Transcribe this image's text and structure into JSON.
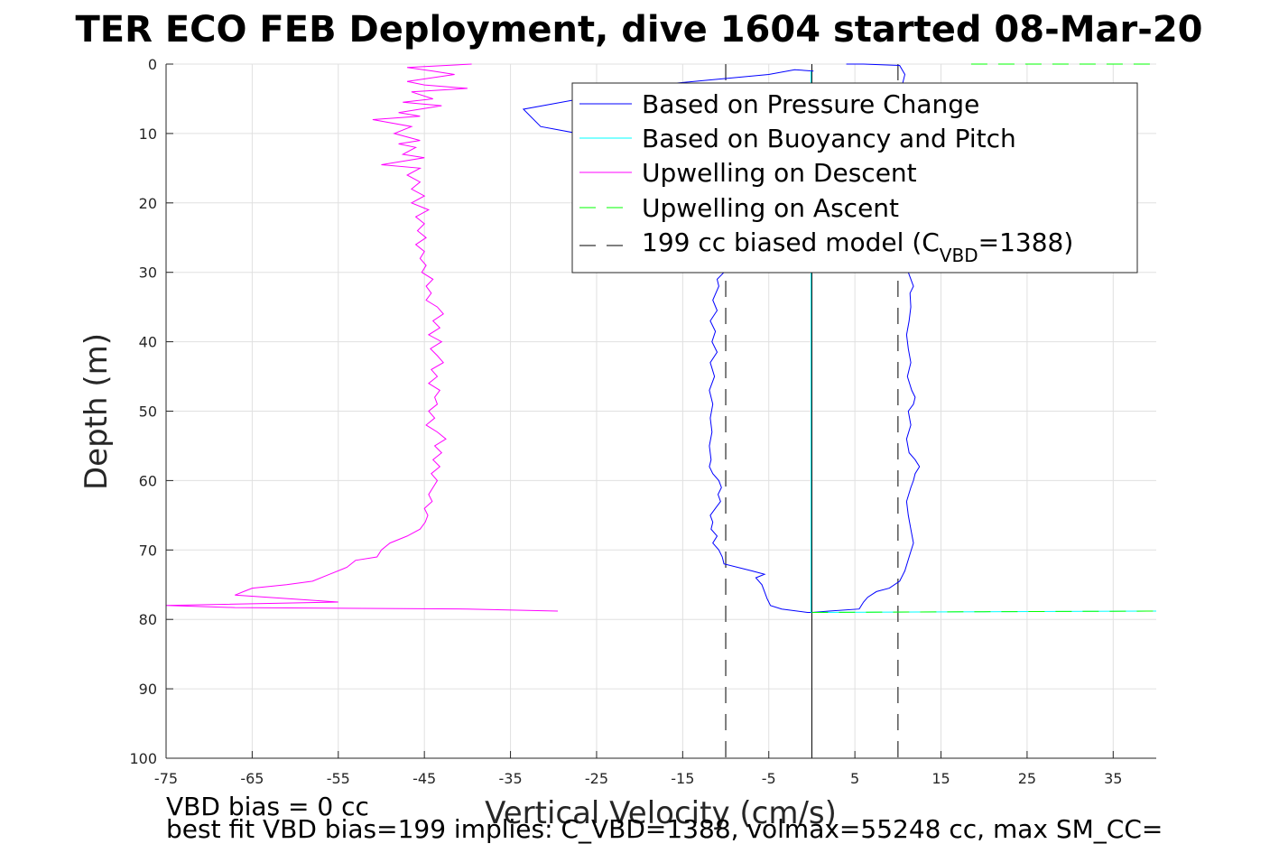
{
  "chart_data": {
    "type": "line",
    "title": "TER ECO FEB Deployment, dive 1604 started 08-Mar-20",
    "xlabel": "Vertical Velocity (cm/s)",
    "ylabel": "Depth (m)",
    "xlim": [
      -75,
      40
    ],
    "ylim": [
      0,
      100
    ],
    "y_reversed": true,
    "grid": true,
    "x_ticks": [
      -75,
      -65,
      -55,
      -45,
      -35,
      -25,
      -15,
      -5,
      5,
      15,
      25,
      35
    ],
    "y_ticks": [
      0,
      10,
      20,
      30,
      40,
      50,
      60,
      70,
      80,
      90,
      100
    ],
    "legend_position": "top-right",
    "legend": [
      {
        "label": "Based on Pressure Change",
        "color": "#0000ff",
        "style": "solid"
      },
      {
        "label": "Based on Buoyancy and Pitch",
        "color": "#00ffff",
        "style": "solid"
      },
      {
        "label": "Upwelling on Descent",
        "color": "#ff00ff",
        "style": "solid"
      },
      {
        "label": "Upwelling on Ascent",
        "color": "#00ff00",
        "style": "dashed"
      },
      {
        "label_prefix": "199 cc biased model (C",
        "label_sub": "VBD",
        "label_suffix": "=1388)",
        "color": "#000000",
        "style": "dashed"
      }
    ],
    "series": [
      {
        "name": "Based on Pressure Change",
        "color": "#0000ff",
        "descent": [
          [
            0.2,
            1
          ],
          [
            -2,
            0.8
          ],
          [
            -5,
            1.5
          ],
          [
            -18,
            3
          ],
          [
            -33.5,
            6.5
          ],
          [
            -31.5,
            9
          ],
          [
            -25,
            10.5
          ],
          [
            -20,
            13
          ],
          [
            -15,
            17
          ],
          [
            -12,
            22
          ],
          [
            -10.5,
            27
          ],
          [
            -10.2,
            30
          ],
          [
            -11,
            31
          ],
          [
            -10.8,
            32
          ],
          [
            -11.5,
            34
          ],
          [
            -11,
            35.5
          ],
          [
            -11.8,
            37
          ],
          [
            -11.2,
            38.5
          ],
          [
            -11.6,
            40
          ],
          [
            -11,
            41.5
          ],
          [
            -11.8,
            43
          ],
          [
            -11.3,
            45
          ],
          [
            -11.9,
            47
          ],
          [
            -11.5,
            49
          ],
          [
            -11.8,
            51
          ],
          [
            -11.6,
            53
          ],
          [
            -11.9,
            55
          ],
          [
            -11.7,
            57
          ],
          [
            -11.9,
            58
          ],
          [
            -11.5,
            59
          ],
          [
            -10.8,
            60
          ],
          [
            -10.5,
            61
          ],
          [
            -10.9,
            62
          ],
          [
            -10.6,
            63
          ],
          [
            -11.2,
            64
          ],
          [
            -11.8,
            65
          ],
          [
            -11.5,
            66
          ],
          [
            -11.7,
            67
          ],
          [
            -11,
            68
          ],
          [
            -11.5,
            69
          ],
          [
            -10.8,
            70
          ],
          [
            -10.4,
            71
          ],
          [
            -10.2,
            72
          ],
          [
            -7,
            73
          ],
          [
            -5.5,
            73.5
          ],
          [
            -6.5,
            74
          ],
          [
            -5.8,
            75
          ],
          [
            -5.5,
            76
          ],
          [
            -5.2,
            77
          ],
          [
            -4.8,
            78
          ],
          [
            -3.5,
            78.5
          ],
          [
            -0.5,
            79
          ],
          [
            0,
            79
          ]
        ],
        "ascent": [
          [
            0,
            79
          ],
          [
            2,
            78.8
          ],
          [
            5.5,
            78.5
          ],
          [
            6,
            77.5
          ],
          [
            6.5,
            76.8
          ],
          [
            7.5,
            76
          ],
          [
            9,
            75.5
          ],
          [
            10.2,
            74.5
          ],
          [
            10.8,
            73
          ],
          [
            11.3,
            71
          ],
          [
            11.8,
            69
          ],
          [
            11.5,
            67
          ],
          [
            11.2,
            65
          ],
          [
            11,
            63
          ],
          [
            11.5,
            61
          ],
          [
            11.8,
            60
          ],
          [
            12,
            59
          ],
          [
            12.5,
            58
          ],
          [
            12,
            57
          ],
          [
            11.3,
            56
          ],
          [
            11,
            54
          ],
          [
            11.5,
            52
          ],
          [
            11.2,
            50
          ],
          [
            11.8,
            49
          ],
          [
            12,
            48
          ],
          [
            11.6,
            47
          ],
          [
            11.1,
            45
          ],
          [
            11.5,
            43
          ],
          [
            11.2,
            41
          ],
          [
            11,
            39
          ],
          [
            11.3,
            37
          ],
          [
            11.5,
            35
          ],
          [
            11.4,
            33
          ],
          [
            11.8,
            32
          ],
          [
            11.2,
            30
          ],
          [
            10.8,
            28
          ],
          [
            10.5,
            20
          ],
          [
            10,
            10
          ],
          [
            10.5,
            3
          ],
          [
            10.8,
            1.5
          ],
          [
            10.2,
            0.2
          ],
          [
            6,
            0
          ],
          [
            4,
            0
          ]
        ]
      },
      {
        "name": "Based on Buoyancy and Pitch",
        "color": "#00ffff",
        "descent": [
          [
            -0.1,
            1
          ],
          [
            -0.1,
            79
          ]
        ],
        "ascent": [
          [
            0,
            79
          ],
          [
            20,
            78.9
          ],
          [
            40,
            78.8
          ]
        ]
      },
      {
        "name": "Upwelling on Descent",
        "color": "#ff00ff",
        "points": [
          [
            -39.5,
            0
          ],
          [
            -47,
            0.5
          ],
          [
            -44,
            1
          ],
          [
            -41.5,
            1.5
          ],
          [
            -47,
            2.5
          ],
          [
            -45,
            3
          ],
          [
            -40,
            3.5
          ],
          [
            -46.5,
            4
          ],
          [
            -44,
            5
          ],
          [
            -47.5,
            5.5
          ],
          [
            -43,
            6
          ],
          [
            -48,
            7
          ],
          [
            -45.5,
            7.5
          ],
          [
            -51,
            8
          ],
          [
            -46.5,
            9
          ],
          [
            -48.5,
            10
          ],
          [
            -45.5,
            11
          ],
          [
            -48,
            11.5
          ],
          [
            -46,
            12
          ],
          [
            -47.5,
            13
          ],
          [
            -45,
            13.5
          ],
          [
            -50,
            14.5
          ],
          [
            -45.5,
            15
          ],
          [
            -47,
            16
          ],
          [
            -45.5,
            17
          ],
          [
            -46.5,
            18
          ],
          [
            -45,
            19
          ],
          [
            -46.5,
            20
          ],
          [
            -44.5,
            21
          ],
          [
            -46,
            22
          ],
          [
            -45,
            23
          ],
          [
            -45.8,
            24
          ],
          [
            -44.8,
            25
          ],
          [
            -46,
            26
          ],
          [
            -45,
            27
          ],
          [
            -45.5,
            28
          ],
          [
            -44.8,
            29
          ],
          [
            -45.3,
            30
          ],
          [
            -44,
            31
          ],
          [
            -44.8,
            32
          ],
          [
            -44.2,
            33
          ],
          [
            -44.8,
            34
          ],
          [
            -43.5,
            35
          ],
          [
            -42.8,
            36
          ],
          [
            -44,
            37
          ],
          [
            -43.2,
            38
          ],
          [
            -44.5,
            39
          ],
          [
            -43,
            40
          ],
          [
            -44.3,
            41
          ],
          [
            -43.5,
            42
          ],
          [
            -42.8,
            43
          ],
          [
            -44.2,
            44
          ],
          [
            -43.5,
            45
          ],
          [
            -44.5,
            46
          ],
          [
            -43.2,
            47
          ],
          [
            -43.8,
            48
          ],
          [
            -43.5,
            49
          ],
          [
            -44.5,
            50
          ],
          [
            -43.8,
            51
          ],
          [
            -44.8,
            52
          ],
          [
            -43.5,
            53
          ],
          [
            -42.5,
            54
          ],
          [
            -43.8,
            55
          ],
          [
            -43,
            56
          ],
          [
            -44,
            57
          ],
          [
            -43.2,
            58
          ],
          [
            -44.2,
            59
          ],
          [
            -43.5,
            60
          ],
          [
            -44,
            61
          ],
          [
            -44.5,
            62
          ],
          [
            -44.1,
            63
          ],
          [
            -45,
            64
          ],
          [
            -44.6,
            65
          ],
          [
            -44.9,
            66
          ],
          [
            -45.5,
            67
          ],
          [
            -47,
            68
          ],
          [
            -49,
            69
          ],
          [
            -50,
            70
          ],
          [
            -50.5,
            71
          ],
          [
            -53,
            71.5
          ],
          [
            -54,
            72.5
          ],
          [
            -56,
            73.5
          ],
          [
            -58,
            74.5
          ],
          [
            -61,
            75
          ],
          [
            -65,
            75.5
          ],
          [
            -66,
            76
          ],
          [
            -67,
            76.5
          ],
          [
            -55,
            77.5
          ],
          [
            -75,
            78
          ],
          [
            -67,
            78.3
          ],
          [
            -40,
            78.5
          ],
          [
            -29.5,
            78.8
          ]
        ]
      },
      {
        "name": "Upwelling on Ascent",
        "color": "#00ff00",
        "segments": [
          [
            [
              0,
              79
            ],
            [
              20,
              78.9
            ],
            [
              40,
              78.8
            ]
          ],
          [
            [
              18.5,
              0
            ],
            [
              40,
              0
            ]
          ]
        ]
      },
      {
        "name": "199 cc biased model",
        "color": "#000000",
        "lines": [
          -10,
          10
        ],
        "solid_zero_line": 0
      }
    ]
  },
  "notes": {
    "line1": "VBD bias = 0 cc",
    "line2": "best fit VBD bias=199 implies: C_VBD=1388, volmax=55248 cc, max SM_CC="
  }
}
